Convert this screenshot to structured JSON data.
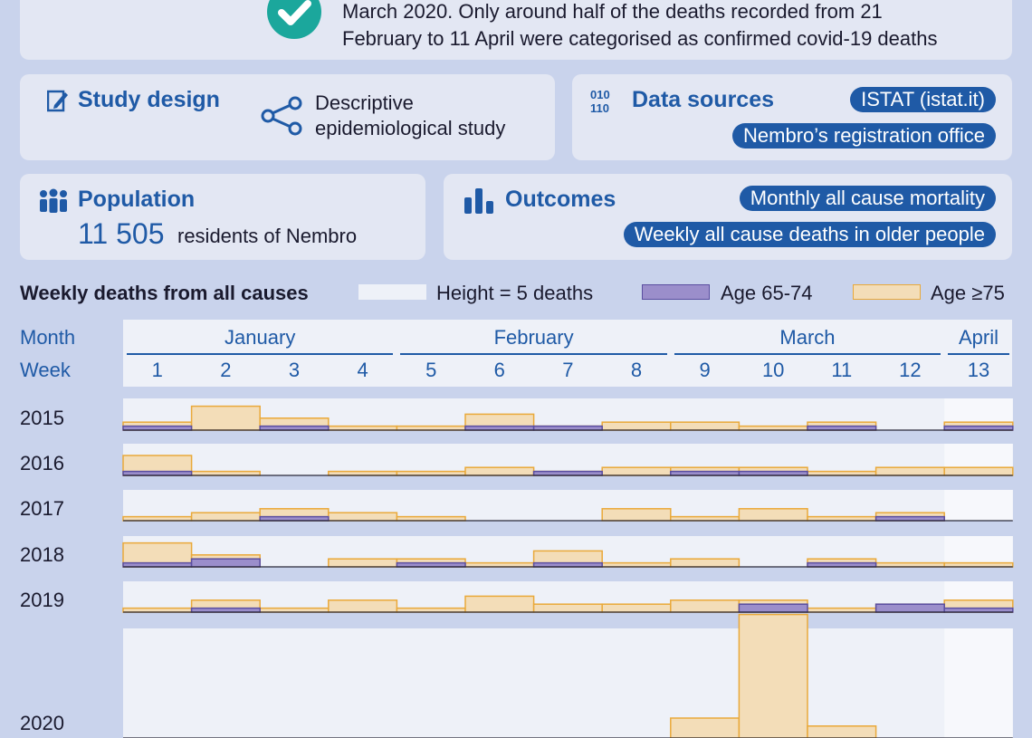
{
  "summary": {
    "text_line1": "March 2020. Only around half of the deaths recorded from 21",
    "text_line2": "February to 11 April were categorised as confirmed covid-19 deaths"
  },
  "study_design": {
    "title": "Study design",
    "line1": "Descriptive",
    "line2": "epidemiological study"
  },
  "data_sources": {
    "title": "Data sources",
    "items": [
      "ISTAT (istat.it)",
      "Nembro’s registration office"
    ]
  },
  "population": {
    "title": "Population",
    "number": "11 505",
    "text": "residents of Nembro"
  },
  "outcomes": {
    "title": "Outcomes",
    "items": [
      "Monthly all cause mortality",
      "Weekly all cause deaths in older people"
    ]
  },
  "legend": {
    "title": "Weekly deaths from all causes",
    "height_label": "Height = 5 deaths",
    "age1_label": "Age 65-74",
    "age2_label": "Age ≥75"
  },
  "colors": {
    "background": "#c9d3ec",
    "card": "#e3e7f3",
    "accent_blue": "#1f5aa6",
    "age_65_74_fill": "#9b8ecb",
    "age_65_74_stroke": "#5a4ea0",
    "age_75_fill": "#f3ddb8",
    "age_75_stroke": "#e9a93a"
  },
  "icons": {
    "summary": "check-icon",
    "study_design": "pencil-icon",
    "study_type": "share-nodes-icon",
    "data_sources": "binary-icon",
    "population": "people-icon",
    "outcomes": "bar-chart-icon"
  },
  "chart_data": {
    "type": "bar",
    "title": "Weekly deaths from all causes",
    "row_header_month": "Month",
    "row_header_week": "Week",
    "months": [
      {
        "name": "January",
        "weeks": [
          1,
          2,
          3,
          4
        ]
      },
      {
        "name": "February",
        "weeks": [
          5,
          6,
          7,
          8
        ]
      },
      {
        "name": "March",
        "weeks": [
          9,
          10,
          11,
          12
        ]
      },
      {
        "name": "April",
        "weeks": [
          13
        ]
      }
    ],
    "weeks": [
      "1",
      "2",
      "3",
      "4",
      "5",
      "6",
      "7",
      "8",
      "9",
      "10",
      "11",
      "12",
      "13"
    ],
    "unit_deaths_per_band": 5,
    "series": [
      {
        "name": "Age 65-74"
      },
      {
        "name": "Age ≥75"
      }
    ],
    "years": [
      {
        "year": "2015",
        "age_65_74": [
          1,
          0,
          1,
          0,
          0,
          1,
          1,
          0,
          0,
          0,
          1,
          0,
          1
        ],
        "age_75_plus": [
          1,
          6,
          2,
          1,
          1,
          3,
          0,
          2,
          2,
          1,
          1,
          0,
          1
        ]
      },
      {
        "year": "2016",
        "age_65_74": [
          1,
          0,
          0,
          0,
          0,
          0,
          1,
          0,
          1,
          1,
          0,
          0,
          0
        ],
        "age_75_plus": [
          4,
          1,
          0,
          1,
          1,
          2,
          0,
          2,
          1,
          1,
          1,
          2,
          2
        ]
      },
      {
        "year": "2017",
        "age_65_74": [
          0,
          0,
          1,
          0,
          0,
          0,
          0,
          0,
          0,
          0,
          0,
          1,
          0
        ],
        "age_75_plus": [
          1,
          2,
          2,
          2,
          1,
          0,
          0,
          3,
          1,
          3,
          1,
          1,
          0
        ]
      },
      {
        "year": "2018",
        "age_65_74": [
          1,
          2,
          0,
          0,
          1,
          0,
          1,
          0,
          0,
          0,
          1,
          0,
          0
        ],
        "age_75_plus": [
          5,
          1,
          0,
          2,
          1,
          1,
          3,
          1,
          2,
          0,
          1,
          1,
          1
        ]
      },
      {
        "year": "2019",
        "age_65_74": [
          0,
          1,
          0,
          0,
          0,
          0,
          0,
          0,
          0,
          2,
          0,
          2,
          1
        ],
        "age_75_plus": [
          1,
          2,
          1,
          3,
          1,
          4,
          2,
          2,
          3,
          1,
          1,
          0,
          2
        ]
      },
      {
        "year": "2020",
        "age_65_74": [
          0,
          0,
          0,
          0,
          0,
          0,
          0,
          0,
          0,
          0,
          0,
          0,
          0
        ],
        "age_75_plus": [
          0,
          0,
          0,
          0,
          0,
          0,
          0,
          0,
          5,
          31,
          3,
          0,
          0
        ]
      }
    ]
  }
}
